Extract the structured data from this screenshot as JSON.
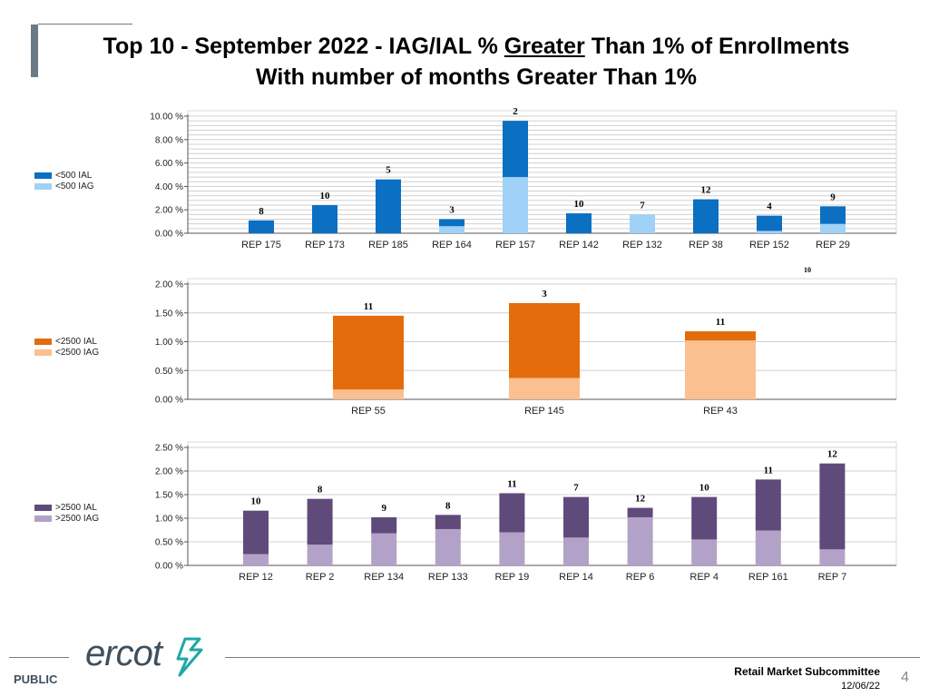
{
  "title": {
    "part1": "Top 10 - September 2022 - IAG/IAL % ",
    "underlined": "Greater",
    "part2": " Than 1% of Enrollments",
    "line2": "With number of months Greater Than 1%"
  },
  "footer": {
    "logo": "ercot",
    "public": "PUBLIC",
    "committee": "Retail Market Subcommittee",
    "date": "12/06/22",
    "page": "4"
  },
  "chart_data": [
    {
      "type": "bar",
      "stacked": true,
      "legend": [
        "<500 IAL",
        "<500 IAG"
      ],
      "colors": {
        "ial": "#0b6fc2",
        "iag": "#9fd2f6"
      },
      "categories": [
        "REP 175",
        "REP 173",
        "REP 185",
        "REP 164",
        "REP 157",
        "REP 142",
        "REP 132",
        "REP 38",
        "REP 152",
        "REP 29"
      ],
      "series": [
        {
          "name": "<500 IAL",
          "values": [
            1.1,
            2.4,
            4.6,
            0.6,
            4.8,
            1.7,
            0.0,
            2.9,
            1.3,
            1.5
          ]
        },
        {
          "name": "<500 IAG",
          "values": [
            0.0,
            0.0,
            0.0,
            0.6,
            4.8,
            0.0,
            1.6,
            0.0,
            0.2,
            0.8
          ]
        }
      ],
      "months": [
        "8",
        "10",
        "5",
        "3",
        "2",
        "10",
        "7",
        "12",
        "4",
        "9"
      ],
      "yticks": [
        "0.00 %",
        "2.00 %",
        "4.00 %",
        "6.00 %",
        "8.00 %",
        "10.00 %"
      ],
      "ylim": [
        0,
        10
      ],
      "grid_step": 0.4,
      "stray_label": "10"
    },
    {
      "type": "bar",
      "stacked": true,
      "legend": [
        "<2500 IAL",
        "<2500 IAG"
      ],
      "colors": {
        "ial": "#e46c0a",
        "iag": "#fac090"
      },
      "categories": [
        "REP 55",
        "REP 145",
        "REP 43"
      ],
      "series": [
        {
          "name": "<2500 IAL",
          "values": [
            1.28,
            1.3,
            0.16
          ]
        },
        {
          "name": "<2500 IAG",
          "values": [
            0.17,
            0.37,
            1.02
          ]
        }
      ],
      "months": [
        "11",
        "3",
        "11"
      ],
      "yticks": [
        "0.00 %",
        "0.50 %",
        "1.00 %",
        "1.50 %",
        "2.00 %"
      ],
      "ylim": [
        0,
        2
      ],
      "grid_step": 0.5
    },
    {
      "type": "bar",
      "stacked": true,
      "legend": [
        ">2500 IAL",
        ">2500 IAG"
      ],
      "colors": {
        "ial": "#604a7b",
        "iag": "#b3a2c7"
      },
      "categories": [
        "REP 12",
        "REP 2",
        "REP 134",
        "REP 133",
        "REP 19",
        "REP 14",
        "REP 6",
        "REP 4",
        "REP 161",
        "REP 7"
      ],
      "series": [
        {
          "name": ">2500 IAL",
          "values": [
            0.92,
            0.97,
            0.34,
            0.3,
            0.83,
            0.86,
            0.2,
            0.9,
            1.08,
            1.82
          ]
        },
        {
          "name": ">2500 IAG",
          "values": [
            0.24,
            0.44,
            0.68,
            0.77,
            0.7,
            0.59,
            1.02,
            0.55,
            0.74,
            0.34
          ]
        }
      ],
      "months": [
        "10",
        "8",
        "9",
        "8",
        "11",
        "7",
        "12",
        "10",
        "11",
        "12"
      ],
      "yticks": [
        "0.00 %",
        "0.50 %",
        "1.00 %",
        "1.50 %",
        "2.00 %",
        "2.50 %"
      ],
      "ylim": [
        0,
        2.5
      ],
      "grid_step": 0.5
    }
  ]
}
